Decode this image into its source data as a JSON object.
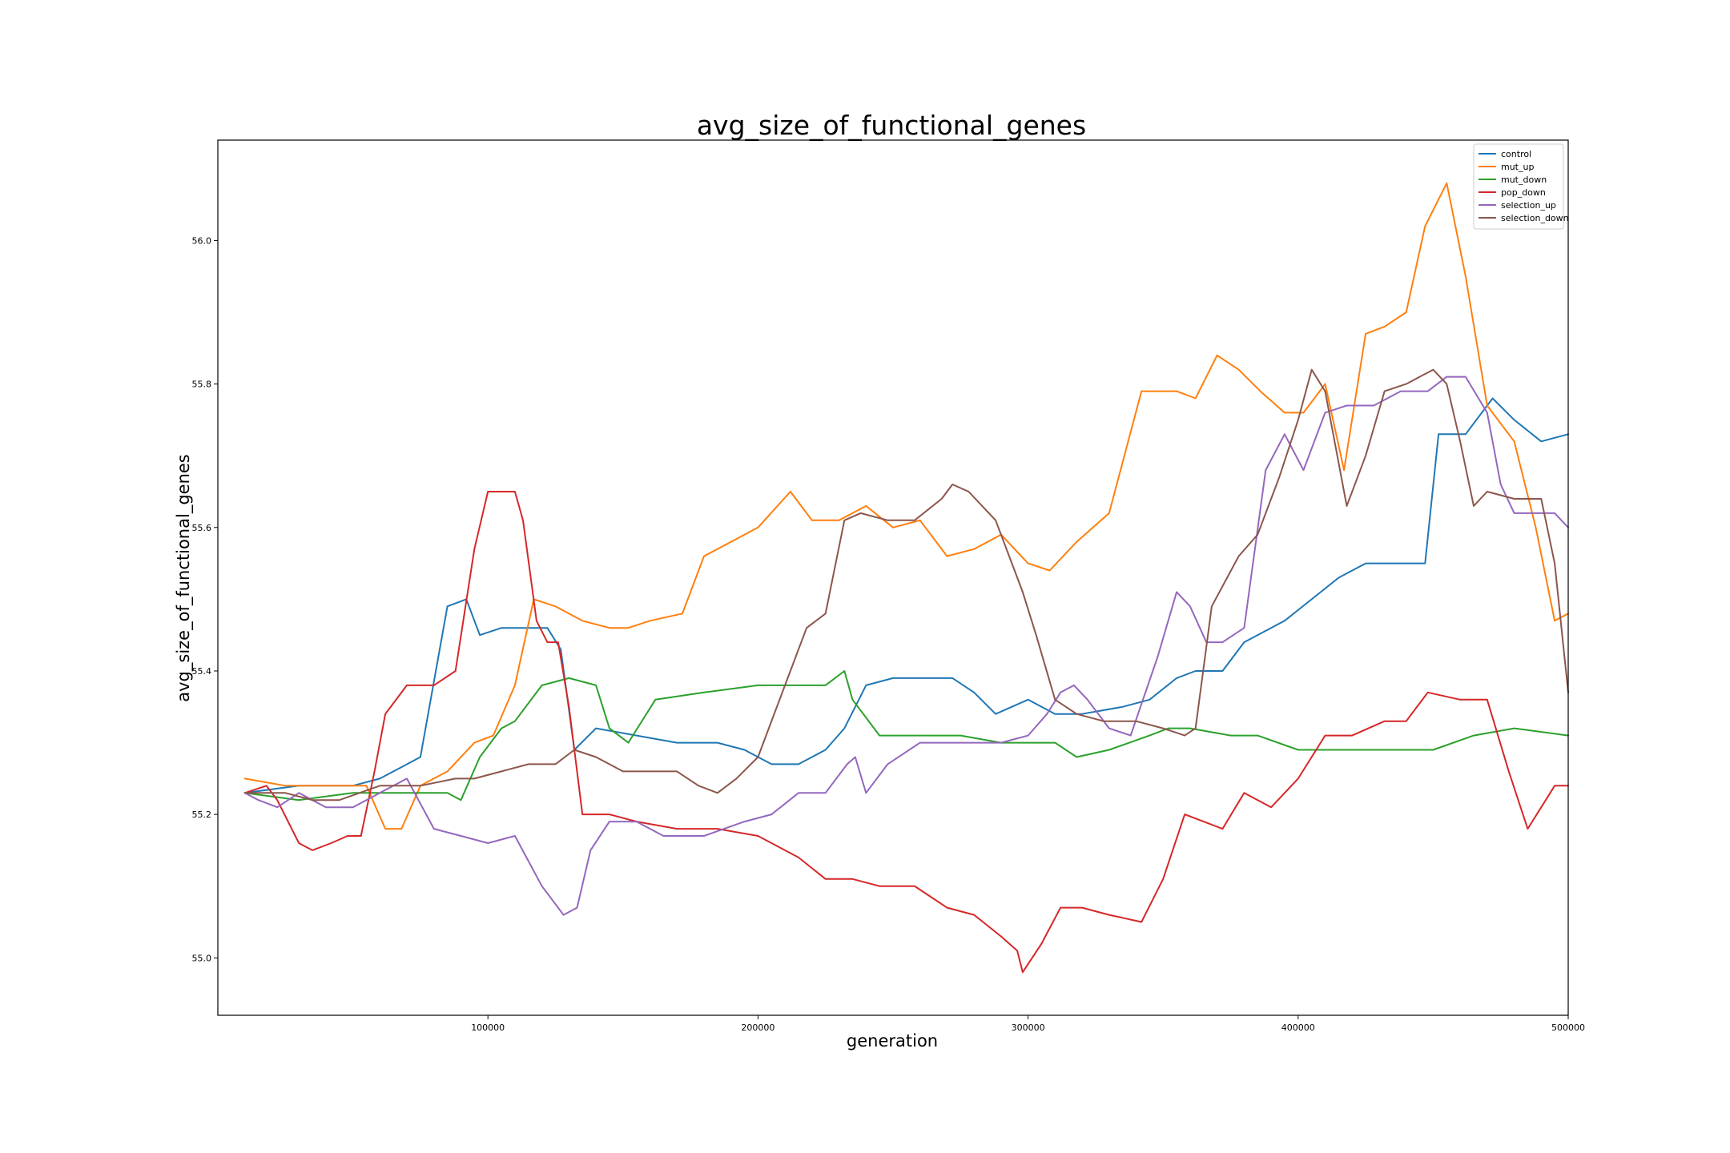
{
  "chart_data": {
    "type": "line",
    "title": "avg_size_of_functional_genes",
    "xlabel": "generation",
    "ylabel": "avg_size_of_functional_genes",
    "xlim": [
      0,
      500000
    ],
    "ylim": [
      54.92,
      56.14
    ],
    "xticks": [
      100000,
      200000,
      300000,
      400000,
      500000
    ],
    "yticks": [
      55.0,
      55.2,
      55.4,
      55.6,
      55.8,
      56.0
    ],
    "xtick_labels": [
      "100000",
      "200000",
      "300000",
      "400000",
      "500000"
    ],
    "ytick_labels": [
      "55.0",
      "55.2",
      "55.4",
      "55.6",
      "55.8",
      "56.0"
    ],
    "grid": false,
    "legend_position": "top-right",
    "series": [
      {
        "name": "control",
        "color": "#1f77b4",
        "x": [
          10000,
          30000,
          50000,
          60000,
          75000,
          85000,
          92000,
          97000,
          105000,
          115000,
          122000,
          127000,
          132000,
          140000,
          155000,
          170000,
          185000,
          195000,
          205000,
          215000,
          225000,
          232000,
          240000,
          250000,
          262000,
          272000,
          280000,
          288000,
          300000,
          310000,
          320000,
          335000,
          345000,
          355000,
          362000,
          372000,
          380000,
          395000,
          405000,
          415000,
          425000,
          440000,
          447000,
          452000,
          462000,
          472000,
          480000,
          490000,
          500000
        ],
        "values": [
          55.23,
          55.24,
          55.24,
          55.25,
          55.28,
          55.49,
          55.5,
          55.45,
          55.46,
          55.46,
          55.46,
          55.43,
          55.29,
          55.32,
          55.31,
          55.3,
          55.3,
          55.29,
          55.27,
          55.27,
          55.29,
          55.32,
          55.38,
          55.39,
          55.39,
          55.39,
          55.37,
          55.34,
          55.36,
          55.34,
          55.34,
          55.35,
          55.36,
          55.39,
          55.4,
          55.4,
          55.44,
          55.47,
          55.5,
          55.53,
          55.55,
          55.55,
          55.55,
          55.73,
          55.73,
          55.78,
          55.75,
          55.72,
          55.73
        ]
      },
      {
        "name": "mut_up",
        "color": "#ff7f0e",
        "x": [
          10000,
          25000,
          40000,
          55000,
          62000,
          68000,
          75000,
          85000,
          95000,
          102000,
          110000,
          117000,
          125000,
          135000,
          145000,
          152000,
          160000,
          172000,
          180000,
          190000,
          200000,
          212000,
          220000,
          230000,
          240000,
          250000,
          260000,
          270000,
          280000,
          290000,
          300000,
          308000,
          318000,
          330000,
          342000,
          355000,
          362000,
          370000,
          378000,
          386000,
          395000,
          402000,
          410000,
          417000,
          425000,
          432000,
          440000,
          447000,
          455000,
          462000,
          470000,
          480000,
          488000,
          495000,
          500000
        ],
        "values": [
          55.25,
          55.24,
          55.24,
          55.24,
          55.18,
          55.18,
          55.24,
          55.26,
          55.3,
          55.31,
          55.38,
          55.5,
          55.49,
          55.47,
          55.46,
          55.46,
          55.47,
          55.48,
          55.56,
          55.58,
          55.6,
          55.65,
          55.61,
          55.61,
          55.63,
          55.6,
          55.61,
          55.56,
          55.57,
          55.59,
          55.55,
          55.54,
          55.58,
          55.62,
          55.79,
          55.79,
          55.78,
          55.84,
          55.82,
          55.79,
          55.76,
          55.76,
          55.8,
          55.68,
          55.87,
          55.88,
          55.9,
          56.02,
          56.08,
          55.95,
          55.77,
          55.72,
          55.6,
          55.47,
          55.48
        ]
      },
      {
        "name": "mut_down",
        "color": "#2ca02c",
        "x": [
          10000,
          30000,
          50000,
          70000,
          85000,
          90000,
          97000,
          105000,
          110000,
          120000,
          130000,
          140000,
          145000,
          152000,
          162000,
          180000,
          200000,
          210000,
          225000,
          232000,
          235000,
          245000,
          255000,
          275000,
          290000,
          310000,
          318000,
          330000,
          345000,
          352000,
          360000,
          375000,
          385000,
          400000,
          420000,
          440000,
          450000,
          465000,
          480000,
          500000
        ],
        "values": [
          55.23,
          55.22,
          55.23,
          55.23,
          55.23,
          55.22,
          55.28,
          55.32,
          55.33,
          55.38,
          55.39,
          55.38,
          55.32,
          55.3,
          55.36,
          55.37,
          55.38,
          55.38,
          55.38,
          55.4,
          55.36,
          55.31,
          55.31,
          55.31,
          55.3,
          55.3,
          55.28,
          55.29,
          55.31,
          55.32,
          55.32,
          55.31,
          55.31,
          55.29,
          55.29,
          55.29,
          55.29,
          55.31,
          55.32,
          55.31
        ]
      },
      {
        "name": "pop_down",
        "color": "#d62728",
        "x": [
          10000,
          18000,
          22000,
          30000,
          35000,
          42000,
          48000,
          53000,
          58000,
          62000,
          70000,
          75000,
          80000,
          88000,
          95000,
          100000,
          106000,
          110000,
          113000,
          118000,
          122000,
          126000,
          130000,
          135000,
          145000,
          155000,
          170000,
          185000,
          200000,
          215000,
          225000,
          235000,
          245000,
          258000,
          270000,
          280000,
          290000,
          296000,
          298000,
          305000,
          312000,
          320000,
          330000,
          342000,
          350000,
          358000,
          365000,
          372000,
          380000,
          390000,
          400000,
          410000,
          420000,
          432000,
          440000,
          448000,
          460000,
          470000,
          478000,
          485000,
          490000,
          495000,
          500000
        ],
        "values": [
          55.23,
          55.24,
          55.22,
          55.16,
          55.15,
          55.16,
          55.17,
          55.17,
          55.26,
          55.34,
          55.38,
          55.38,
          55.38,
          55.4,
          55.57,
          55.65,
          55.65,
          55.65,
          55.61,
          55.47,
          55.44,
          55.44,
          55.35,
          55.2,
          55.2,
          55.19,
          55.18,
          55.18,
          55.17,
          55.14,
          55.11,
          55.11,
          55.1,
          55.1,
          55.07,
          55.06,
          55.03,
          55.01,
          54.98,
          55.02,
          55.07,
          55.07,
          55.06,
          55.05,
          55.11,
          55.2,
          55.19,
          55.18,
          55.23,
          55.21,
          55.25,
          55.31,
          55.31,
          55.33,
          55.33,
          55.37,
          55.36,
          55.36,
          55.26,
          55.18,
          55.21,
          55.24,
          55.24
        ]
      },
      {
        "name": "selection_up",
        "color": "#9467bd",
        "x": [
          10000,
          15000,
          22000,
          30000,
          40000,
          50000,
          60000,
          70000,
          80000,
          90000,
          100000,
          110000,
          120000,
          128000,
          133000,
          138000,
          145000,
          155000,
          165000,
          180000,
          195000,
          205000,
          215000,
          225000,
          233000,
          236000,
          240000,
          248000,
          260000,
          275000,
          290000,
          300000,
          307000,
          312000,
          317000,
          322000,
          330000,
          338000,
          348000,
          355000,
          360000,
          366000,
          372000,
          380000,
          388000,
          395000,
          402000,
          410000,
          418000,
          428000,
          438000,
          448000,
          455000,
          462000,
          470000,
          475000,
          480000,
          490000,
          495000,
          500000
        ],
        "values": [
          55.23,
          55.22,
          55.21,
          55.23,
          55.21,
          55.21,
          55.23,
          55.25,
          55.18,
          55.17,
          55.16,
          55.17,
          55.1,
          55.06,
          55.07,
          55.15,
          55.19,
          55.19,
          55.17,
          55.17,
          55.19,
          55.2,
          55.23,
          55.23,
          55.27,
          55.28,
          55.23,
          55.27,
          55.3,
          55.3,
          55.3,
          55.31,
          55.34,
          55.37,
          55.38,
          55.36,
          55.32,
          55.31,
          55.42,
          55.51,
          55.49,
          55.44,
          55.44,
          55.46,
          55.68,
          55.73,
          55.68,
          55.76,
          55.77,
          55.77,
          55.79,
          55.79,
          55.81,
          55.81,
          55.76,
          55.66,
          55.62,
          55.62,
          55.62,
          55.6
        ]
      },
      {
        "name": "selection_down",
        "color": "#8c564b",
        "x": [
          10000,
          25000,
          35000,
          45000,
          60000,
          75000,
          88000,
          95000,
          105000,
          115000,
          125000,
          132000,
          140000,
          150000,
          160000,
          170000,
          178000,
          185000,
          192000,
          200000,
          210000,
          218000,
          225000,
          232000,
          238000,
          248000,
          258000,
          268000,
          272000,
          278000,
          288000,
          298000,
          303000,
          310000,
          318000,
          328000,
          340000,
          350000,
          358000,
          362000,
          368000,
          378000,
          385000,
          393000,
          400000,
          405000,
          410000,
          418000,
          425000,
          432000,
          440000,
          445000,
          450000,
          455000,
          460000,
          465000,
          470000,
          480000,
          490000,
          495000,
          500000
        ],
        "values": [
          55.23,
          55.23,
          55.22,
          55.22,
          55.24,
          55.24,
          55.25,
          55.25,
          55.26,
          55.27,
          55.27,
          55.29,
          55.28,
          55.26,
          55.26,
          55.26,
          55.24,
          55.23,
          55.25,
          55.28,
          55.38,
          55.46,
          55.48,
          55.61,
          55.62,
          55.61,
          55.61,
          55.64,
          55.66,
          55.65,
          55.61,
          55.51,
          55.45,
          55.36,
          55.34,
          55.33,
          55.33,
          55.32,
          55.31,
          55.32,
          55.49,
          55.56,
          55.59,
          55.67,
          55.75,
          55.82,
          55.79,
          55.63,
          55.7,
          55.79,
          55.8,
          55.81,
          55.82,
          55.8,
          55.72,
          55.63,
          55.65,
          55.64,
          55.64,
          55.55,
          55.37
        ]
      }
    ]
  }
}
